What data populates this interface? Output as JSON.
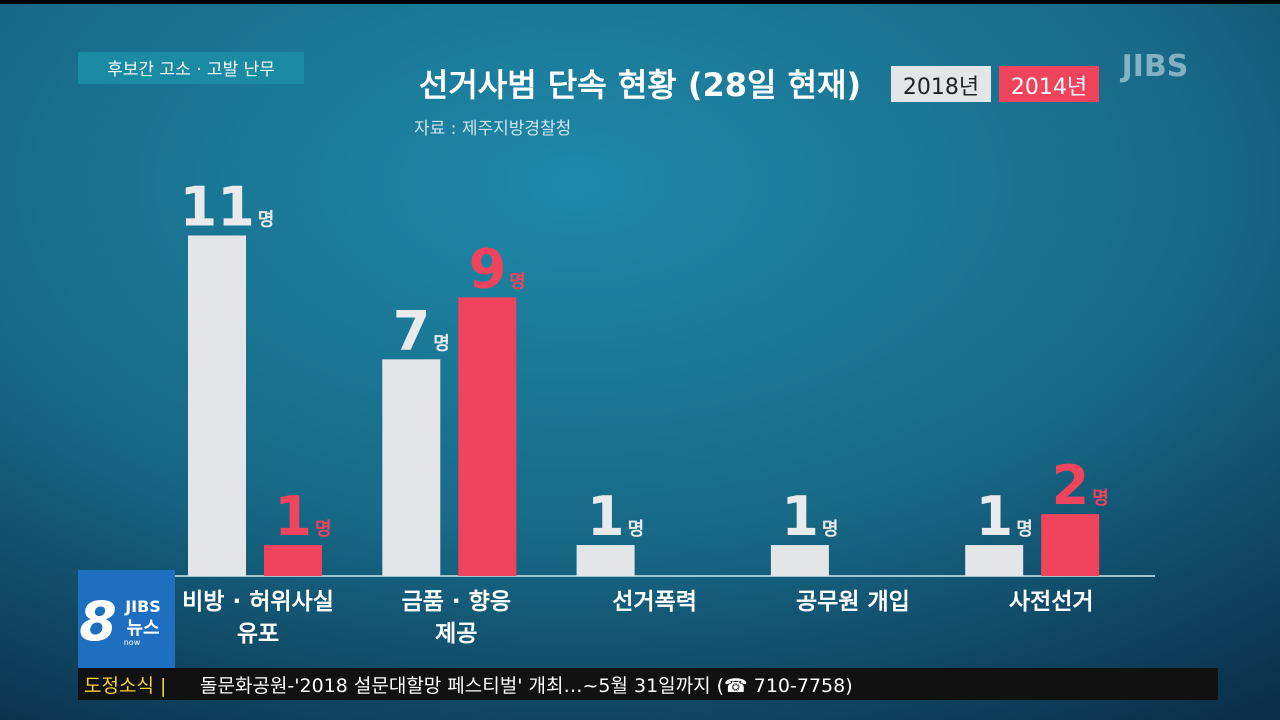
{
  "chart_data": {
    "type": "bar",
    "caption": "후보간 고소 · 고발 난무",
    "title": "선거사범 단속 현황 (28일 현재)",
    "source": "자료 : 제주지방경찰청",
    "categories": [
      [
        "비방 · 허위사실",
        "유포"
      ],
      [
        "금품 · 향응",
        "제공"
      ],
      [
        "선거폭력"
      ],
      [
        "공무원 개입"
      ],
      [
        "사전선거"
      ]
    ],
    "series": [
      {
        "name": "2018년",
        "color": "#e4e5e6",
        "label_color": "#e8eaec",
        "values": [
          11,
          7,
          1,
          1,
          1
        ],
        "value_labels": [
          "11명",
          "7명",
          "1명",
          "1명",
          "1명"
        ]
      },
      {
        "name": "2014년",
        "color": "#f0435c",
        "label_color": "#f0435c",
        "values": [
          1,
          9,
          null,
          null,
          2
        ],
        "value_labels": [
          "1명",
          "9명",
          null,
          null,
          "2명"
        ]
      }
    ],
    "ylim": [
      0,
      11.5
    ],
    "broadcaster": "JIBS",
    "program": {
      "number": "8",
      "brand": "JIBS",
      "name": "뉴스",
      "sub": "now"
    },
    "ticker": {
      "section": "도정소식 |",
      "text": "돌문화공원-'2018 설문대할망 페스티벌' 개최…~5월 31일까지 (☎ 710-7758)"
    }
  }
}
